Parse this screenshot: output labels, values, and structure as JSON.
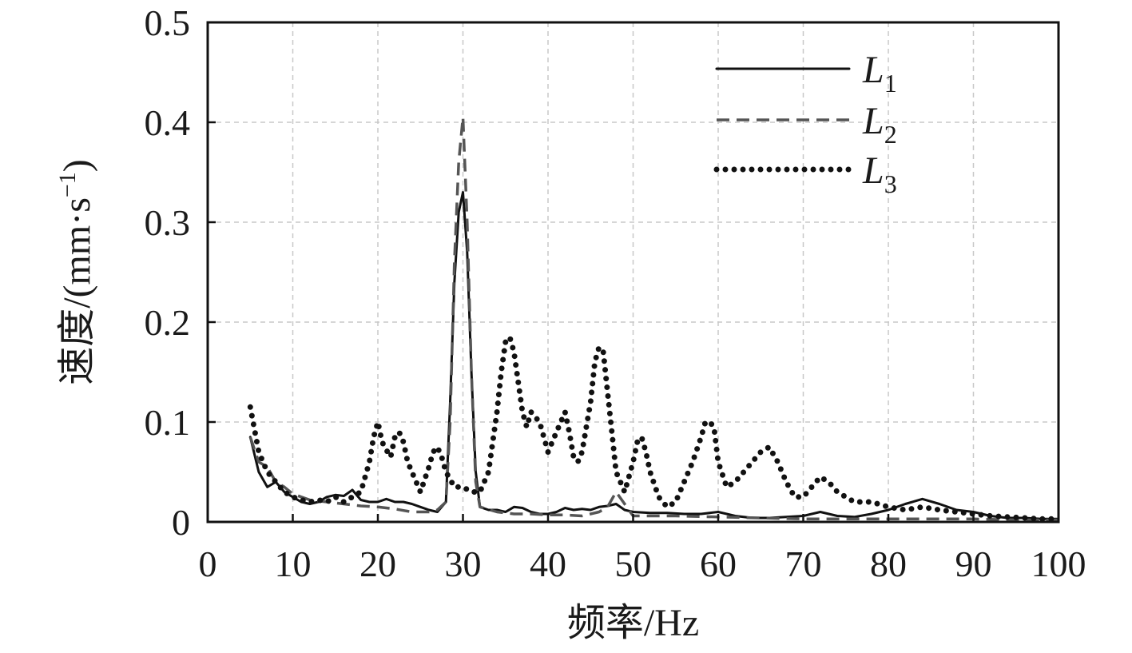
{
  "chart_data": {
    "type": "line",
    "xlabel": "频率/Hz",
    "ylabel": "速度/(mm·s",
    "ylabel_sup": "−1",
    "ylabel_close": ")",
    "xlim": [
      0,
      100
    ],
    "ylim": [
      0,
      0.5
    ],
    "x_ticks": [
      0,
      10,
      20,
      30,
      40,
      50,
      60,
      70,
      80,
      90,
      100
    ],
    "x_tick_labels": [
      "0",
      "10",
      "20",
      "30",
      "40",
      "50",
      "60",
      "70",
      "80",
      "90",
      "100"
    ],
    "y_ticks": [
      0,
      0.1,
      0.2,
      0.3,
      0.4,
      0.5
    ],
    "y_tick_labels": [
      "0",
      "0.1",
      "0.2",
      "0.3",
      "0.4",
      "0.5"
    ],
    "grid": true,
    "legend_position": "top-right",
    "series": [
      {
        "name": "L",
        "name_sub": "1",
        "style": "solid",
        "color": "#111111",
        "x": [
          5,
          6,
          7,
          8,
          9,
          10,
          11,
          12,
          13,
          14,
          15,
          16,
          17,
          18,
          19,
          20,
          21,
          22,
          23,
          24,
          25,
          26,
          27,
          28,
          28.5,
          29,
          29.5,
          30,
          30.5,
          31,
          31.5,
          32,
          33,
          34,
          35,
          36,
          37,
          38,
          39,
          40,
          41,
          42,
          43,
          44,
          45,
          46,
          47,
          48,
          49,
          50,
          52,
          54,
          56,
          58,
          60,
          62,
          64,
          66,
          68,
          70,
          72,
          74,
          76,
          78,
          80,
          82,
          84,
          86,
          88,
          90,
          92,
          94,
          96,
          98,
          100
        ],
        "y": [
          0.085,
          0.05,
          0.035,
          0.04,
          0.03,
          0.025,
          0.02,
          0.018,
          0.02,
          0.025,
          0.027,
          0.026,
          0.032,
          0.022,
          0.02,
          0.02,
          0.023,
          0.02,
          0.02,
          0.018,
          0.015,
          0.012,
          0.01,
          0.02,
          0.12,
          0.24,
          0.31,
          0.33,
          0.27,
          0.15,
          0.05,
          0.015,
          0.012,
          0.012,
          0.01,
          0.015,
          0.014,
          0.01,
          0.008,
          0.008,
          0.01,
          0.014,
          0.012,
          0.013,
          0.012,
          0.015,
          0.016,
          0.018,
          0.012,
          0.01,
          0.009,
          0.009,
          0.008,
          0.008,
          0.01,
          0.006,
          0.004,
          0.004,
          0.005,
          0.006,
          0.01,
          0.006,
          0.005,
          0.008,
          0.012,
          0.018,
          0.023,
          0.018,
          0.012,
          0.01,
          0.006,
          0.004,
          0.004,
          0.003,
          0.003
        ]
      },
      {
        "name": "L",
        "name_sub": "2",
        "style": "dashed",
        "color": "#555555",
        "x": [
          5,
          6,
          7,
          8,
          9,
          10,
          12,
          14,
          16,
          18,
          20,
          22,
          24,
          26,
          27,
          28,
          28.5,
          29,
          29.5,
          30,
          30.5,
          31,
          31.5,
          32,
          34,
          36,
          38,
          40,
          42,
          44,
          46,
          47,
          48,
          49,
          50,
          55,
          60,
          65,
          70,
          75,
          80,
          85,
          90,
          95,
          100
        ],
        "y": [
          0.085,
          0.06,
          0.055,
          0.04,
          0.035,
          0.028,
          0.022,
          0.02,
          0.018,
          0.016,
          0.015,
          0.013,
          0.01,
          0.01,
          0.012,
          0.02,
          0.1,
          0.26,
          0.36,
          0.405,
          0.3,
          0.15,
          0.04,
          0.015,
          0.01,
          0.008,
          0.008,
          0.007,
          0.007,
          0.006,
          0.01,
          0.015,
          0.03,
          0.018,
          0.006,
          0.006,
          0.005,
          0.004,
          0.003,
          0.003,
          0.003,
          0.003,
          0.003,
          0.002,
          0.002
        ]
      },
      {
        "name": "L",
        "name_sub": "3",
        "style": "dotted",
        "color": "#111111",
        "x": [
          5,
          6,
          7,
          8,
          9,
          10,
          11,
          12,
          13,
          14,
          15,
          16,
          17,
          18,
          19,
          19.5,
          20,
          20.5,
          21,
          21.5,
          22,
          22.5,
          23,
          23.5,
          24,
          25,
          26,
          26.5,
          27,
          27.5,
          28,
          29,
          30,
          31,
          32,
          33,
          34,
          34.5,
          35,
          35.5,
          36,
          36.5,
          37,
          37.5,
          38,
          39,
          40,
          41,
          41.5,
          42,
          42.5,
          43,
          43.5,
          44,
          45,
          45.5,
          46,
          46.5,
          47,
          47.5,
          48,
          49,
          50,
          50.5,
          51,
          51.5,
          52,
          53,
          54,
          55,
          56,
          57,
          58,
          58.5,
          59,
          59.5,
          60,
          61,
          62,
          63,
          64,
          65,
          66,
          67,
          68,
          69,
          70,
          71,
          72,
          73,
          74,
          75,
          76,
          78,
          80,
          82,
          84,
          86,
          88,
          90,
          92,
          94,
          96,
          98,
          100
        ],
        "y": [
          0.115,
          0.07,
          0.05,
          0.04,
          0.03,
          0.025,
          0.022,
          0.02,
          0.022,
          0.02,
          0.025,
          0.02,
          0.025,
          0.03,
          0.06,
          0.085,
          0.1,
          0.08,
          0.072,
          0.065,
          0.085,
          0.09,
          0.08,
          0.06,
          0.05,
          0.03,
          0.055,
          0.07,
          0.075,
          0.065,
          0.05,
          0.035,
          0.035,
          0.03,
          0.03,
          0.05,
          0.11,
          0.15,
          0.18,
          0.185,
          0.17,
          0.14,
          0.11,
          0.095,
          0.11,
          0.1,
          0.07,
          0.09,
          0.1,
          0.11,
          0.09,
          0.065,
          0.06,
          0.07,
          0.12,
          0.16,
          0.175,
          0.17,
          0.13,
          0.09,
          0.05,
          0.03,
          0.06,
          0.08,
          0.085,
          0.07,
          0.05,
          0.025,
          0.015,
          0.02,
          0.04,
          0.06,
          0.085,
          0.1,
          0.1,
          0.095,
          0.06,
          0.035,
          0.04,
          0.05,
          0.06,
          0.07,
          0.075,
          0.06,
          0.04,
          0.025,
          0.025,
          0.035,
          0.045,
          0.04,
          0.03,
          0.025,
          0.02,
          0.02,
          0.015,
          0.012,
          0.015,
          0.012,
          0.01,
          0.008,
          0.006,
          0.005,
          0.004,
          0.003,
          0.003
        ]
      }
    ]
  }
}
